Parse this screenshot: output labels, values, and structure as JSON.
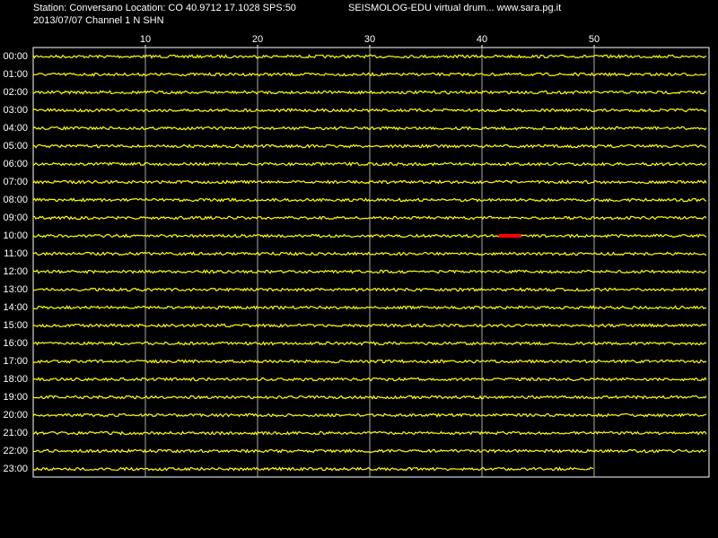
{
  "chart_data": {
    "type": "helicorder",
    "title": "Station: Conversano Location: CO 40.9712 17.1028 SPS:50",
    "subtitle": "2013/07/07  Channel 1 N SHN",
    "header_right": "SEISMOLOG-EDU virtual drum... www.sara.pg.it",
    "categories": [
      "00:00",
      "01:00",
      "02:00",
      "03:00",
      "04:00",
      "05:00",
      "06:00",
      "07:00",
      "08:00",
      "09:00",
      "10:00",
      "11:00",
      "12:00",
      "13:00",
      "14:00",
      "15:00",
      "16:00",
      "17:00",
      "18:00",
      "19:00",
      "20:00",
      "21:00",
      "22:00",
      "23:00"
    ],
    "values": [
      60,
      60,
      60,
      60,
      60,
      60,
      60,
      60,
      60,
      60,
      60,
      60,
      60,
      60,
      60,
      60,
      60,
      60,
      60,
      60,
      60,
      60,
      60,
      50
    ],
    "color": "#ffff00",
    "xlim": [
      0,
      60
    ],
    "xticks": [
      10,
      20,
      30,
      40,
      50
    ],
    "grid": true,
    "highlights": [
      {
        "row": 10,
        "start": 41.5,
        "end": 43.5,
        "color": "#ff0000"
      }
    ]
  }
}
